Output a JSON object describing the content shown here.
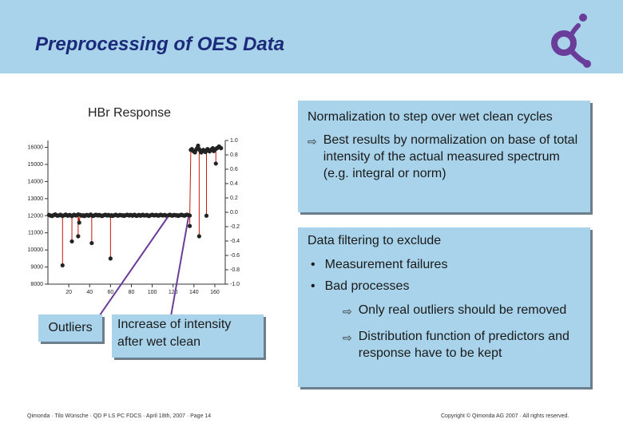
{
  "header": {
    "title": "Preprocessing of OES Data"
  },
  "colors": {
    "header_bg": "#a8d3ea",
    "title": "#1c2a7a",
    "logo": "#6a3d9a",
    "series": "#c21807",
    "callout_line": "#6a3d9a"
  },
  "chart": {
    "title": "HBr Response",
    "left_ticks": [
      "16000",
      "15000",
      "14000",
      "13000",
      "12000",
      "11000",
      "10000",
      "9000",
      "8000"
    ],
    "right_ticks": [
      "1.0",
      "0.8",
      "0.6",
      "0.4",
      "0.2",
      "0.0",
      "-0.2",
      "-0.4",
      "-0.6",
      "-0.8",
      "-1.0"
    ],
    "x_ticks": [
      "20",
      "40",
      "60",
      "80",
      "100",
      "120",
      "140",
      "160"
    ]
  },
  "chart_data": {
    "type": "line",
    "title": "HBr Response",
    "xlabel": "",
    "ylabel": "",
    "xlim": [
      0,
      170
    ],
    "ylim": [
      8000,
      16400
    ],
    "x": [
      1,
      2,
      3,
      4,
      5,
      6,
      7,
      8,
      9,
      10,
      11,
      12,
      13,
      14,
      15,
      16,
      17,
      18,
      19,
      20,
      21,
      22,
      23,
      24,
      25,
      26,
      27,
      28,
      29,
      30,
      31,
      32,
      33,
      34,
      35,
      36,
      37,
      38,
      39,
      40,
      41,
      42,
      43,
      44,
      45,
      46,
      47,
      48,
      49,
      50,
      51,
      52,
      53,
      54,
      55,
      56,
      57,
      58,
      59,
      60,
      61,
      62,
      63,
      64,
      65,
      66,
      67,
      68,
      69,
      70,
      71,
      72,
      73,
      74,
      75,
      76,
      77,
      78,
      79,
      80,
      81,
      82,
      83,
      84,
      85,
      86,
      87,
      88,
      89,
      90,
      91,
      92,
      93,
      94,
      95,
      96,
      97,
      98,
      99,
      100,
      101,
      102,
      103,
      104,
      105,
      106,
      107,
      108,
      109,
      110,
      111,
      112,
      113,
      114,
      115,
      116,
      117,
      118,
      119,
      120,
      121,
      122,
      123,
      124,
      125,
      126,
      127,
      128,
      129,
      130,
      131,
      132,
      133,
      134,
      135,
      136,
      137,
      138,
      139,
      140,
      141,
      142,
      143,
      144,
      145,
      146,
      147,
      148,
      149,
      150,
      151,
      152,
      153,
      154,
      155,
      156,
      157,
      158,
      159,
      160,
      161,
      162,
      163,
      164,
      165,
      166
    ],
    "series": [
      {
        "values": [
          12050,
          12020,
          12000,
          11980,
          12020,
          12050,
          12080,
          12040,
          12000,
          12010,
          12030,
          12060,
          12020,
          11990,
          12010,
          12040,
          12070,
          12030,
          12000,
          12030,
          12050,
          12010,
          11980,
          12020,
          12060,
          12030,
          12010,
          12040,
          12080,
          11600,
          12050,
          12020,
          12000,
          12030,
          11980,
          12010,
          12050,
          12040,
          12000,
          12030,
          12070,
          12020,
          11990,
          12000,
          12040,
          12060,
          12030,
          12010,
          12050,
          12030,
          12000,
          11980,
          12020,
          12040,
          12060,
          12030,
          12010,
          12050,
          12020,
          12000,
          12030,
          11990,
          12010,
          12040,
          12060,
          12030,
          12000,
          12020,
          12050,
          12040,
          12010,
          12030,
          11990,
          12020,
          12040,
          12060,
          12030,
          12010,
          12050,
          12040,
          12000,
          12030,
          12060,
          12020,
          11990,
          12010,
          12050,
          12030,
          12000,
          12040,
          12060,
          12020,
          12010,
          12030,
          12050,
          12000,
          11980,
          12020,
          12040,
          12060,
          12030,
          12010,
          12040,
          12050,
          12020,
          12000,
          12030,
          12060,
          12040,
          12010,
          12030,
          12050,
          12020,
          11990,
          12010,
          12040,
          12060,
          12030,
          12000,
          12020,
          12050,
          12040,
          12010,
          12030,
          11990,
          12020,
          12040,
          12060,
          12030,
          12020,
          12000,
          12040,
          12060,
          12050,
          12030,
          12010,
          15850,
          15900,
          15800,
          15750,
          15700,
          15850,
          15950,
          16100,
          15900,
          15800,
          15700,
          15800,
          15850,
          15780,
          15720,
          15820,
          15900,
          15850,
          15760,
          15820,
          15880,
          15950,
          15780,
          15860,
          15900,
          15950,
          15980,
          16050,
          16000,
          15950
        ]
      }
    ],
    "dips": [
      {
        "x": 14,
        "y": 9100
      },
      {
        "x": 23,
        "y": 10500
      },
      {
        "x": 29,
        "y": 10800
      },
      {
        "x": 42,
        "y": 10400
      },
      {
        "x": 60,
        "y": 9500
      },
      {
        "x": 136,
        "y": 11400
      },
      {
        "x": 145,
        "y": 10800
      },
      {
        "x": 152,
        "y": 12000
      },
      {
        "x": 161,
        "y": 15050
      }
    ]
  },
  "callouts": {
    "outliers": "Outliers",
    "increase": "Increase of intensity after wet clean"
  },
  "norm_box": {
    "heading": "Normalization to step over wet clean cycles",
    "item": "Best results by normalization on base of total intensity of the actual measured spectrum (e.g. integral or norm)"
  },
  "filter_box": {
    "heading": "Data filtering to exclude",
    "bullets": [
      "Measurement failures",
      "Bad processes"
    ],
    "sub": [
      "Only real outliers should be removed",
      "Distribution function of predictors and response have to be kept"
    ]
  },
  "footer": {
    "left": "Qimonda · Tilo Wünsche · QD P LS PC FDCS · April 18th, 2007 · Page 14",
    "right": "Copyright © Qimonda AG 2007 · All rights reserved."
  }
}
